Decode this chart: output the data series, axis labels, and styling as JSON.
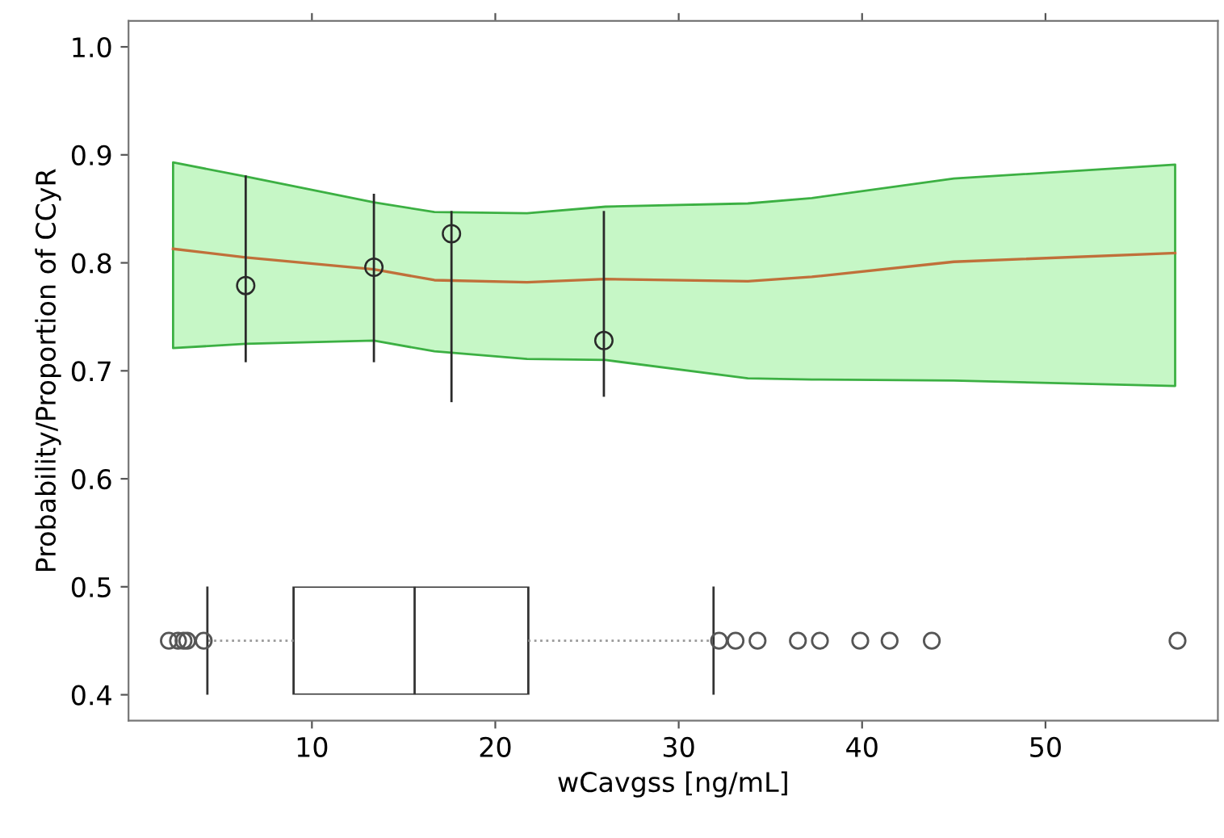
{
  "chart_data": [
    {
      "type": "line",
      "xlabel": "wCavgss [ng/mL]",
      "ylabel": "Probability/Proportion of CCyR",
      "xlim": [
        0.0,
        59.4
      ],
      "ylim": [
        0.376,
        1.024
      ],
      "xticks": [
        10,
        20,
        30,
        40,
        50
      ],
      "yticks": [
        0.4,
        0.5,
        0.6,
        0.7,
        0.8,
        0.9,
        {
          "value": 1,
          "label": "1.0"
        }
      ],
      "grid": false,
      "legend": false,
      "series": [
        {
          "color": "#c0703a",
          "line_style": "solid",
          "marker": "none",
          "x": [
            2.43,
            6.39,
            13.38,
            16.68,
            21.73,
            26.0,
            33.77,
            37.26,
            45.0,
            57.07
          ],
          "values": [
            0.813,
            0.805,
            0.794,
            0.784,
            0.782,
            0.785,
            0.783,
            0.787,
            0.801,
            0.809
          ],
          "lower": [
            0.721,
            0.725,
            0.728,
            0.718,
            0.711,
            0.71,
            0.693,
            0.692,
            0.691,
            0.686
          ],
          "upper": [
            0.893,
            0.88,
            0.856,
            0.847,
            0.846,
            0.852,
            0.855,
            0.86,
            0.878,
            0.891
          ]
        },
        {
          "type": "scatter",
          "color": "#2a2a2a",
          "marker": "circle",
          "x": [
            6.39,
            13.38,
            17.61,
            25.92
          ],
          "values": [
            0.779,
            0.796,
            0.827,
            0.728
          ],
          "errors": [
            [
              0.709,
              0.88
            ],
            [
              0.709,
              0.863
            ],
            [
              0.672,
              0.847
            ],
            [
              0.677,
              0.847
            ]
          ]
        }
      ]
    },
    {
      "type": "box",
      "orientation": "horizontal",
      "categories": [
        null
      ],
      "color": "#333333",
      "xlim": [
        0.0,
        59.4
      ],
      "xticks": [
        10,
        20,
        30,
        40,
        50
      ],
      "tick_labels": false,
      "boxes": [
        {
          "low": 4.3,
          "q1": 9.0,
          "median": 15.6,
          "q3": 21.8,
          "high": 31.9,
          "outliers": [
            2.2,
            2.7,
            3.0,
            3.2,
            4.1,
            32.2,
            33.1,
            34.3,
            36.5,
            37.7,
            39.9,
            41.5,
            43.8,
            57.2
          ]
        }
      ]
    }
  ]
}
